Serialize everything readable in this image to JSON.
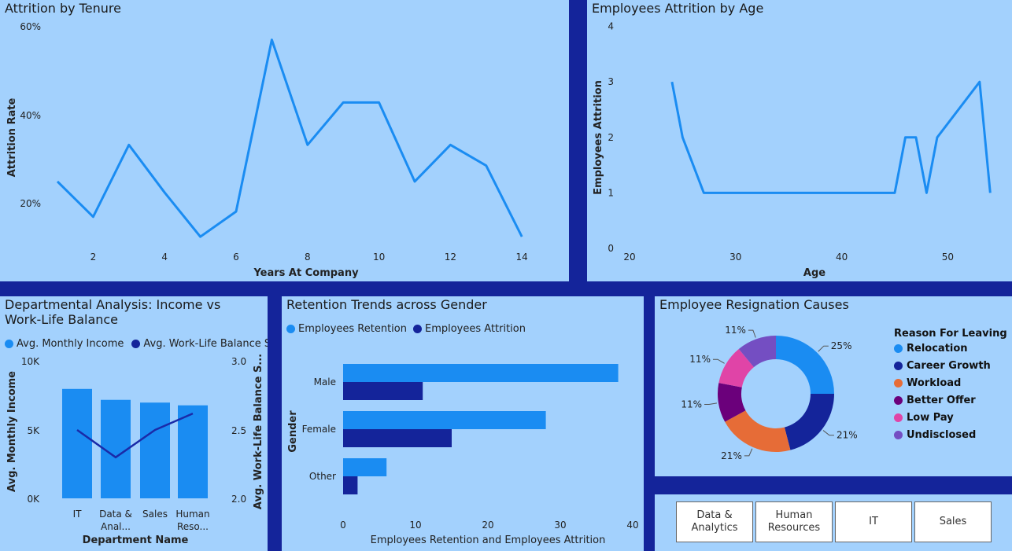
{
  "tenure": {
    "title": "Attrition by Tenure",
    "xlabel": "Years At Company",
    "ylabel": "Attrition Rate",
    "y_ticks": [
      "20%",
      "40%",
      "60%"
    ],
    "x_ticks": [
      "2",
      "4",
      "6",
      "8",
      "10",
      "12",
      "14"
    ]
  },
  "age": {
    "title": "Employees Attrition by Age",
    "xlabel": "Age",
    "ylabel": "Employees Attrition",
    "y_ticks": [
      "0",
      "1",
      "2",
      "3",
      "4"
    ],
    "x_ticks": [
      "20",
      "30",
      "40",
      "50"
    ]
  },
  "dept": {
    "title_line1": "Departmental Analysis: Income vs",
    "title_line2": "Work-Life Balance",
    "legend_income": "Avg. Monthly Income",
    "legend_wlb": "Avg. Work-Life Balance Sc...",
    "ylabel_left": "Avg. Monthly Income",
    "ylabel_right": "Avg. Work-Life Balance S...",
    "xlabel": "Department Name",
    "y_ticks_left": [
      "0K",
      "5K",
      "10K"
    ],
    "y_ticks_right": [
      "2.0",
      "2.5",
      "3.0"
    ],
    "cat_labels": [
      [
        "IT"
      ],
      [
        "Data &",
        "Anal..."
      ],
      [
        "Sales"
      ],
      [
        "Human",
        "Reso..."
      ]
    ]
  },
  "gender": {
    "title": "Retention Trends across Gender",
    "legend_retention": "Employees Retention",
    "legend_attrition": "Employees Attrition",
    "ylabel": "Gender",
    "xlabel": "Employees Retention and Employees Attrition",
    "x_ticks": [
      "0",
      "10",
      "20",
      "30",
      "40"
    ]
  },
  "resign": {
    "title": "Employee Resignation Causes",
    "legend_title": "Reason For Leaving"
  },
  "slicer": {
    "buttons": [
      [
        "Data &",
        "Analytics"
      ],
      [
        "Human",
        "Resources"
      ],
      [
        "IT"
      ],
      [
        "Sales"
      ]
    ]
  },
  "colors": {
    "light_blue": "#1a8cf2",
    "dark_blue": "#14249a",
    "line_dark": "#1a2aa8",
    "orange": "#e66c37",
    "purple": "#6b007b",
    "pink": "#e044a7",
    "violet": "#744ec2"
  },
  "chart_data": [
    {
      "type": "line",
      "title": "Attrition by Tenure",
      "xlabel": "Years At Company",
      "ylabel": "Attrition Rate",
      "x": [
        1,
        2,
        3,
        4,
        5,
        6,
        7,
        8,
        9,
        10,
        11,
        12,
        13,
        14
      ],
      "values": [
        25,
        17,
        33.3,
        22.5,
        12.5,
        18.2,
        57.1,
        33.3,
        42.9,
        42.9,
        25,
        33.3,
        28.6,
        12.5
      ],
      "value_unit": "%",
      "xlim": [
        0,
        15
      ],
      "ylim": [
        9,
        60
      ]
    },
    {
      "type": "line",
      "title": "Employees Attrition by Age",
      "xlabel": "Age",
      "ylabel": "Employees Attrition",
      "x": [
        24,
        25,
        27,
        28,
        29,
        30,
        31,
        32,
        33,
        34,
        35,
        36,
        37,
        38,
        39,
        40,
        41,
        42,
        43,
        44,
        45,
        46,
        47,
        48,
        49,
        53,
        54
      ],
      "values": [
        3,
        2,
        1,
        1,
        1,
        1,
        1,
        1,
        1,
        1,
        1,
        1,
        1,
        1,
        1,
        1,
        1,
        1,
        1,
        1,
        1,
        2,
        2,
        1,
        2,
        3,
        1
      ],
      "xlim": [
        20,
        54
      ],
      "ylim": [
        0,
        4
      ]
    },
    {
      "type": "bar",
      "title": "Departmental Analysis: Income vs Work-Life Balance",
      "categories": [
        "IT",
        "Data & Analytics",
        "Sales",
        "Human Resources"
      ],
      "series": [
        {
          "name": "Avg. Monthly Income",
          "type": "bar",
          "axis": "left",
          "values": [
            8000,
            7200,
            7000,
            6800
          ]
        },
        {
          "name": "Avg. Work-Life Balance Sc...",
          "type": "line",
          "axis": "right",
          "values": [
            2.5,
            2.3,
            2.5,
            2.62
          ]
        }
      ],
      "ylim_left": [
        0,
        10000
      ],
      "ylim_right": [
        2.0,
        3.0
      ],
      "xlabel": "Department Name"
    },
    {
      "type": "bar",
      "orientation": "horizontal",
      "title": "Retention Trends across Gender",
      "categories": [
        "Male",
        "Female",
        "Other"
      ],
      "series": [
        {
          "name": "Employees Retention",
          "values": [
            38,
            28,
            6
          ]
        },
        {
          "name": "Employees Attrition",
          "values": [
            11,
            15,
            2
          ]
        }
      ],
      "xlim": [
        0,
        40
      ],
      "xlabel": "Employees Retention and Employees Attrition",
      "ylabel": "Gender"
    },
    {
      "type": "pie",
      "donut": true,
      "title": "Employee Resignation Causes",
      "legend_title": "Reason For Leaving",
      "labels": [
        "Relocation",
        "Career Growth",
        "Workload",
        "Better Offer",
        "Low Pay",
        "Undisclosed"
      ],
      "values": [
        25,
        21,
        21,
        11,
        11,
        11
      ],
      "display_labels": [
        "25%",
        "21%",
        "21%",
        "11%",
        "11%",
        "11%"
      ],
      "colors": [
        "#1a8cf2",
        "#14249a",
        "#e66c37",
        "#6b007b",
        "#e044a7",
        "#744ec2"
      ]
    }
  ]
}
